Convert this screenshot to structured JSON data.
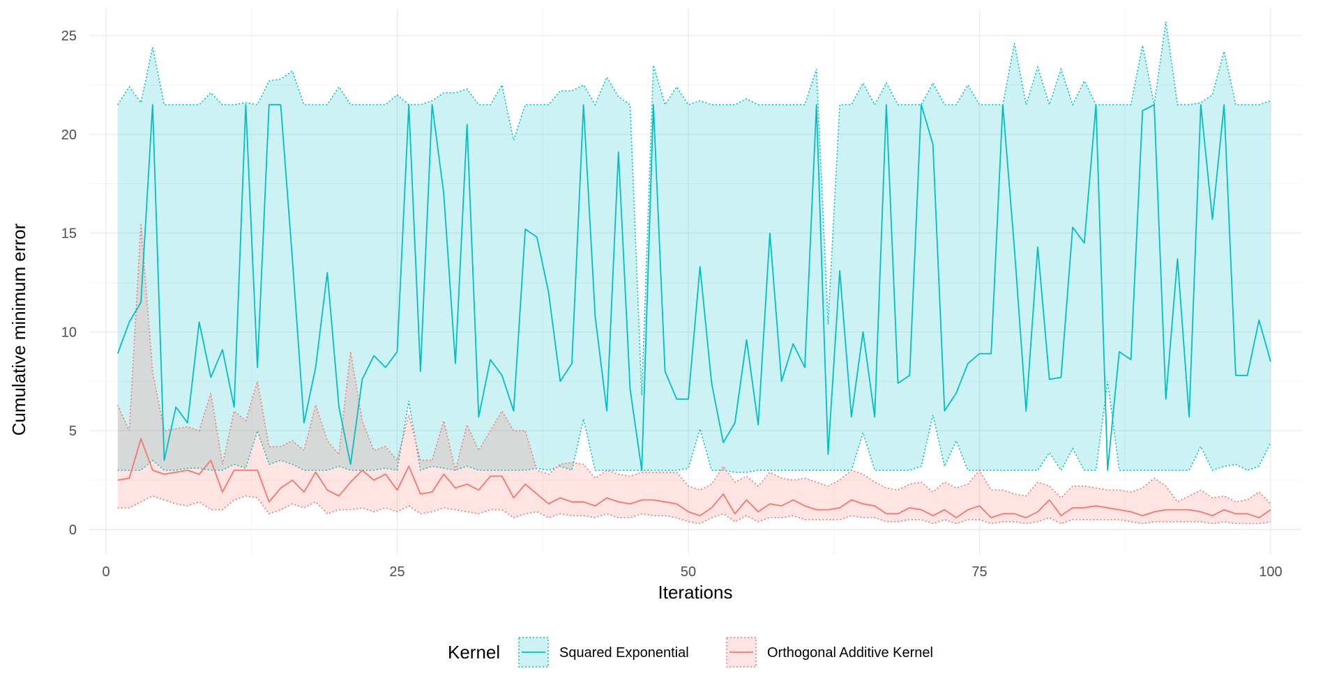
{
  "chart_data": {
    "type": "line",
    "xlabel": "Iterations",
    "ylabel": "Cumulative minimum error",
    "xlim": [
      0,
      100
    ],
    "ylim": [
      0,
      25
    ],
    "x_ticks": [
      0,
      25,
      50,
      75,
      100
    ],
    "y_ticks": [
      0,
      5,
      10,
      15,
      20,
      25
    ],
    "grid": true,
    "ribbon_style": "dotted",
    "legend": {
      "title": "Kernel",
      "position": "bottom",
      "entries": [
        "Squared Exponential",
        "Orthogonal Additive Kernel"
      ]
    },
    "x": [
      1,
      2,
      3,
      4,
      5,
      6,
      7,
      8,
      9,
      10,
      11,
      12,
      13,
      14,
      15,
      16,
      17,
      18,
      19,
      20,
      21,
      22,
      23,
      24,
      25,
      26,
      27,
      28,
      29,
      30,
      31,
      32,
      33,
      34,
      35,
      36,
      37,
      38,
      39,
      40,
      41,
      42,
      43,
      44,
      45,
      46,
      47,
      48,
      49,
      50,
      51,
      52,
      53,
      54,
      55,
      56,
      57,
      58,
      59,
      60,
      61,
      62,
      63,
      64,
      65,
      66,
      67,
      68,
      69,
      70,
      71,
      72,
      73,
      74,
      75,
      76,
      77,
      78,
      79,
      80,
      81,
      82,
      83,
      84,
      85,
      86,
      87,
      88,
      89,
      90,
      91,
      92,
      93,
      94,
      95,
      96,
      97,
      98,
      99,
      100
    ],
    "series": [
      {
        "name": "Squared Exponential",
        "color": "#00BFC4",
        "mean": [
          8.9,
          10.5,
          11.5,
          21.5,
          3.5,
          6.2,
          5.4,
          10.5,
          7.7,
          9.1,
          6.2,
          21.5,
          8.2,
          21.5,
          21.5,
          13.7,
          5.4,
          8.2,
          13.0,
          6.2,
          3.3,
          7.6,
          8.8,
          8.2,
          9.0,
          21.5,
          8.0,
          21.5,
          17.0,
          8.4,
          20.5,
          5.7,
          8.6,
          7.8,
          6.0,
          15.2,
          14.8,
          12.0,
          7.5,
          8.4,
          21.5,
          10.8,
          6.0,
          19.1,
          7.1,
          3.0,
          21.5,
          8.0,
          6.6,
          6.6,
          13.3,
          7.4,
          4.4,
          5.4,
          9.6,
          5.3,
          15.0,
          7.5,
          9.4,
          8.2,
          21.5,
          3.8,
          13.1,
          5.7,
          10.0,
          5.7,
          21.5,
          7.4,
          7.8,
          21.5,
          19.5,
          6.0,
          6.9,
          8.4,
          8.9,
          8.9,
          21.5,
          14.2,
          6.0,
          14.3,
          7.6,
          7.7,
          15.3,
          14.5,
          21.5,
          3.0,
          9.0,
          8.6,
          21.2,
          21.5,
          6.6,
          13.7,
          5.7,
          21.5,
          15.7,
          21.5,
          7.8,
          7.8,
          10.6,
          8.5
        ],
        "upper": [
          21.5,
          22.4,
          21.6,
          24.4,
          21.5,
          21.5,
          21.5,
          21.5,
          22.1,
          21.5,
          21.5,
          21.6,
          21.5,
          22.7,
          22.8,
          23.2,
          21.5,
          21.5,
          21.5,
          22.4,
          21.5,
          21.5,
          21.5,
          21.5,
          22.0,
          21.5,
          21.5,
          21.7,
          22.1,
          22.1,
          22.3,
          21.5,
          21.5,
          22.5,
          19.7,
          21.5,
          21.5,
          21.5,
          22.2,
          22.2,
          22.5,
          21.5,
          22.9,
          21.9,
          21.5,
          6.8,
          23.5,
          21.5,
          22.4,
          21.5,
          21.7,
          21.5,
          21.5,
          21.5,
          21.8,
          21.5,
          21.5,
          21.5,
          21.5,
          21.5,
          23.3,
          10.4,
          21.5,
          21.5,
          22.6,
          21.5,
          22.6,
          21.5,
          21.5,
          21.5,
          22.6,
          21.5,
          21.5,
          22.5,
          21.5,
          21.5,
          21.5,
          24.6,
          21.5,
          23.4,
          21.5,
          23.3,
          21.5,
          22.7,
          21.5,
          21.5,
          21.5,
          21.5,
          24.5,
          21.5,
          25.7,
          21.5,
          21.5,
          21.6,
          22.0,
          24.2,
          21.5,
          21.5,
          21.5,
          21.7
        ],
        "lower": [
          3.0,
          3.0,
          3.0,
          3.5,
          3.0,
          3.0,
          3.1,
          3.1,
          3.0,
          3.0,
          3.3,
          3.1,
          5.0,
          3.3,
          3.5,
          3.3,
          3.0,
          3.0,
          3.0,
          3.2,
          3.0,
          3.0,
          3.0,
          3.1,
          3.0,
          6.5,
          3.0,
          3.2,
          3.1,
          3.0,
          3.2,
          3.0,
          3.0,
          3.0,
          3.0,
          3.0,
          3.1,
          3.0,
          3.2,
          3.0,
          5.6,
          3.0,
          3.0,
          3.0,
          3.0,
          3.0,
          3.0,
          3.0,
          3.0,
          3.1,
          5.1,
          3.0,
          3.0,
          2.9,
          2.9,
          3.0,
          3.0,
          3.0,
          3.0,
          3.0,
          3.0,
          3.0,
          3.0,
          3.0,
          4.9,
          3.0,
          3.0,
          3.0,
          3.0,
          3.2,
          5.8,
          3.2,
          4.5,
          3.0,
          3.0,
          3.0,
          3.0,
          3.0,
          3.0,
          3.0,
          3.9,
          3.0,
          4.1,
          3.0,
          3.0,
          7.5,
          3.0,
          3.0,
          3.0,
          3.0,
          3.0,
          3.0,
          3.0,
          4.2,
          3.0,
          3.2,
          3.3,
          3.0,
          3.2,
          4.4
        ]
      },
      {
        "name": "Orthogonal Additive Kernel",
        "color": "#F8766D",
        "mean": [
          2.5,
          2.6,
          4.6,
          3.0,
          2.8,
          2.9,
          3.0,
          2.8,
          3.5,
          1.9,
          3.0,
          3.0,
          3.0,
          1.4,
          2.1,
          2.5,
          1.9,
          2.9,
          2.0,
          1.7,
          2.4,
          3.0,
          2.5,
          2.8,
          2.0,
          3.2,
          1.8,
          1.9,
          2.8,
          2.1,
          2.3,
          2.0,
          2.7,
          2.7,
          1.6,
          2.3,
          1.8,
          1.3,
          1.6,
          1.4,
          1.4,
          1.2,
          1.6,
          1.4,
          1.3,
          1.5,
          1.5,
          1.4,
          1.3,
          0.9,
          0.7,
          1.1,
          1.8,
          0.8,
          1.5,
          0.9,
          1.3,
          1.2,
          1.5,
          1.2,
          1.0,
          1.0,
          1.1,
          1.5,
          1.3,
          1.2,
          0.8,
          0.8,
          1.1,
          1.0,
          0.7,
          1.0,
          0.6,
          1.0,
          1.2,
          0.6,
          0.8,
          0.8,
          0.6,
          0.9,
          1.5,
          0.7,
          1.1,
          1.1,
          1.2,
          1.1,
          1.0,
          0.9,
          0.7,
          0.9,
          1.0,
          1.0,
          1.0,
          0.9,
          0.7,
          1.0,
          0.8,
          0.8,
          0.6,
          1.0
        ],
        "upper": [
          6.3,
          5.0,
          15.5,
          8.0,
          5.0,
          5.1,
          5.2,
          5.0,
          6.9,
          3.3,
          6.0,
          5.5,
          7.5,
          4.2,
          4.2,
          4.5,
          4.0,
          6.3,
          4.5,
          3.8,
          9.0,
          5.5,
          4.0,
          4.2,
          3.5,
          5.8,
          3.5,
          3.5,
          5.5,
          3.0,
          5.3,
          4.0,
          5.0,
          6.0,
          5.0,
          5.0,
          3.0,
          2.8,
          3.3,
          3.4,
          3.3,
          2.6,
          3.0,
          2.8,
          2.7,
          2.9,
          2.9,
          2.9,
          2.9,
          2.2,
          2.0,
          2.3,
          3.2,
          2.4,
          2.7,
          2.2,
          2.9,
          2.6,
          2.5,
          2.6,
          2.4,
          2.2,
          2.5,
          3.0,
          2.8,
          2.4,
          2.1,
          2.0,
          2.3,
          2.4,
          1.9,
          2.4,
          2.1,
          2.3,
          3.0,
          2.0,
          2.0,
          1.8,
          1.7,
          2.4,
          2.2,
          1.6,
          2.2,
          2.2,
          2.1,
          2.0,
          2.0,
          1.9,
          2.1,
          2.6,
          2.2,
          1.4,
          1.7,
          2.0,
          1.6,
          1.7,
          1.4,
          1.5,
          1.9,
          1.3
        ],
        "lower": [
          1.1,
          1.1,
          1.4,
          1.7,
          1.5,
          1.3,
          1.2,
          1.4,
          1.0,
          1.0,
          1.5,
          1.7,
          1.6,
          0.8,
          1.0,
          1.3,
          1.1,
          1.4,
          0.8,
          1.0,
          1.0,
          1.1,
          0.9,
          1.1,
          0.9,
          1.2,
          0.8,
          0.9,
          1.1,
          1.0,
          0.9,
          0.8,
          1.0,
          1.0,
          0.6,
          0.8,
          0.9,
          0.6,
          0.8,
          0.7,
          0.7,
          0.6,
          0.8,
          0.6,
          0.6,
          0.8,
          0.7,
          0.7,
          0.6,
          0.4,
          0.3,
          0.6,
          0.8,
          0.4,
          0.7,
          0.4,
          0.6,
          0.6,
          0.7,
          0.5,
          0.5,
          0.5,
          0.5,
          0.7,
          0.6,
          0.6,
          0.4,
          0.4,
          0.5,
          0.5,
          0.3,
          0.5,
          0.3,
          0.5,
          0.5,
          0.3,
          0.4,
          0.4,
          0.3,
          0.4,
          0.6,
          0.3,
          0.5,
          0.5,
          0.5,
          0.5,
          0.5,
          0.4,
          0.3,
          0.4,
          0.4,
          0.4,
          0.4,
          0.4,
          0.3,
          0.4,
          0.3,
          0.3,
          0.3,
          0.4
        ]
      }
    ]
  }
}
